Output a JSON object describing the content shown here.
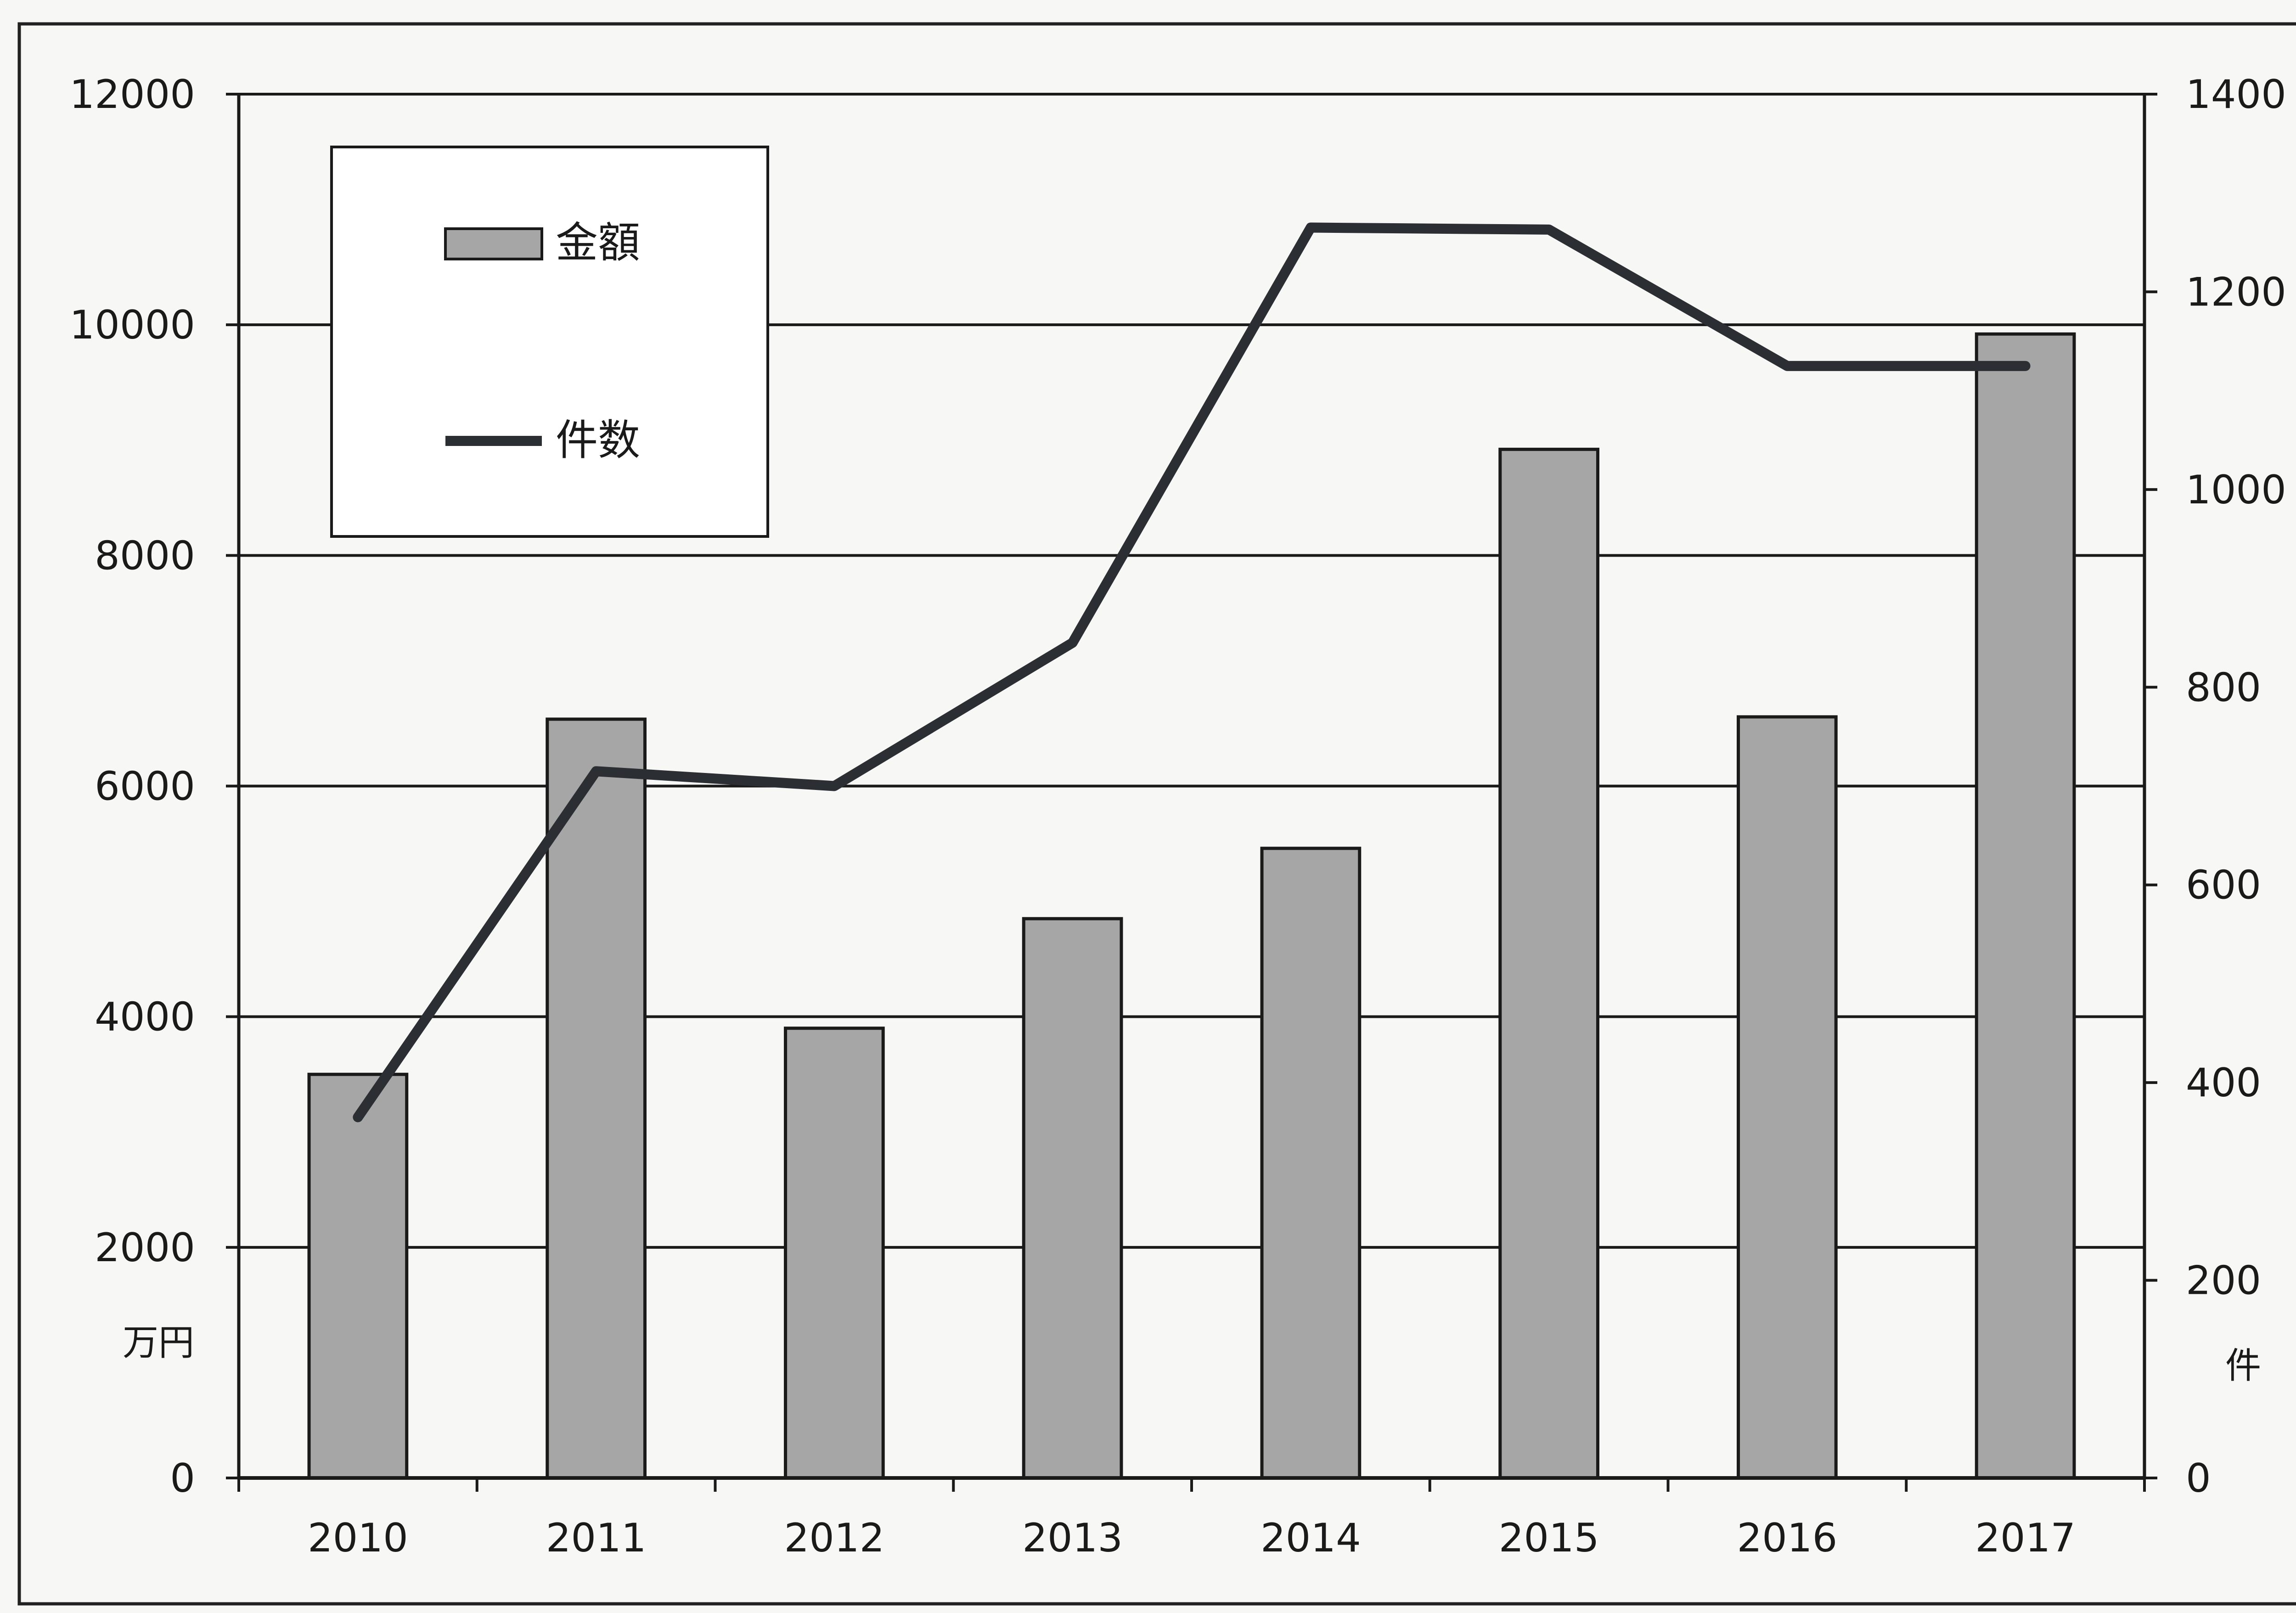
{
  "chart_data": {
    "type": "bar",
    "categories": [
      "2010",
      "2011",
      "2012",
      "2013",
      "2014",
      "2015",
      "2016",
      "2017"
    ],
    "series": [
      {
        "name": "金額",
        "type": "bar",
        "axis": "left",
        "values": [
          3500,
          6580,
          3900,
          4850,
          5460,
          8920,
          6600,
          9920
        ]
      },
      {
        "name": "件数",
        "type": "line",
        "axis": "right",
        "values": [
          365,
          715,
          700,
          845,
          1265,
          1263,
          1125,
          1125
        ]
      }
    ],
    "y_left": {
      "unit": "万円",
      "range": [
        0,
        12000
      ],
      "ticks": [
        0,
        2000,
        4000,
        6000,
        8000,
        10000,
        12000
      ]
    },
    "y_right": {
      "unit": "件",
      "range": [
        0,
        1400
      ],
      "ticks": [
        0,
        200,
        400,
        600,
        800,
        1000,
        1200,
        1400
      ]
    },
    "grid": true,
    "legend": "top-left",
    "colors": {
      "bar_fill": "#a6a6a6",
      "bar_stroke": "#1a1a1a",
      "line": "#2b2f33",
      "grid": "#1a1a1a"
    }
  }
}
